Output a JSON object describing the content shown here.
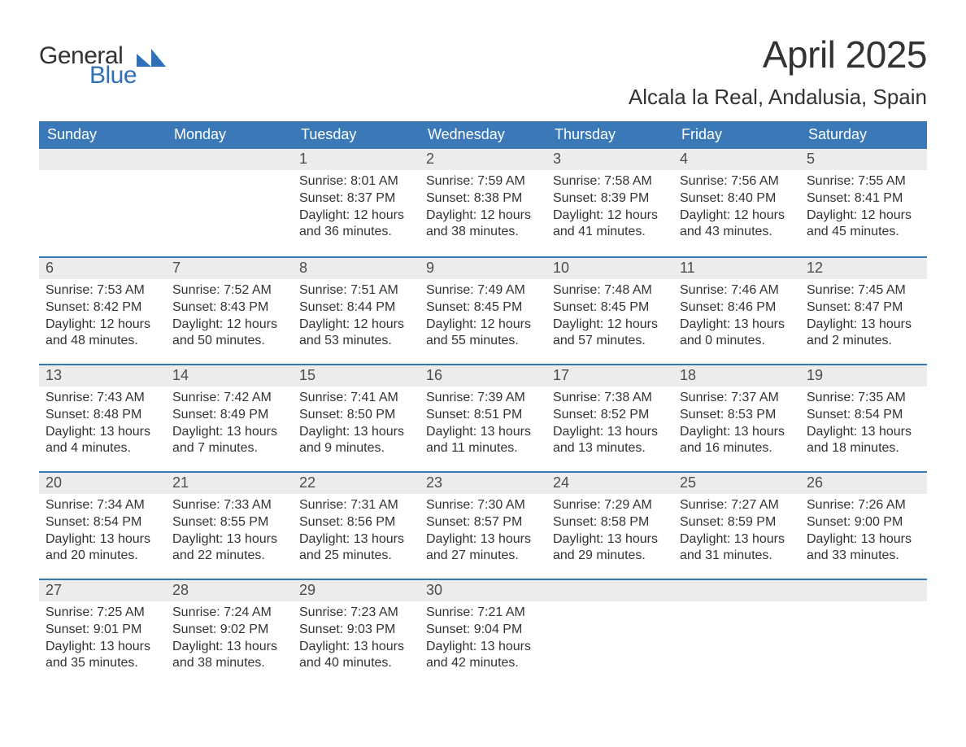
{
  "logo": {
    "word1": "General",
    "word2": "Blue",
    "mark_color": "#2f70b6",
    "text_color_dark": "#333333"
  },
  "title": "April 2025",
  "location": "Alcala la Real, Andalusia, Spain",
  "colors": {
    "header_bg": "#3b78b8",
    "header_text": "#ffffff",
    "daynum_bg": "#ececec",
    "daynum_text": "#4d4d4d",
    "body_text": "#333333",
    "row_border": "#3b78b8",
    "page_bg": "#ffffff"
  },
  "fonts": {
    "title_size_pt": 34,
    "location_size_pt": 20,
    "dow_size_pt": 14,
    "daynum_size_pt": 14,
    "body_size_pt": 12
  },
  "days_of_week": [
    "Sunday",
    "Monday",
    "Tuesday",
    "Wednesday",
    "Thursday",
    "Friday",
    "Saturday"
  ],
  "weeks": [
    [
      {
        "blank": true
      },
      {
        "blank": true
      },
      {
        "num": "1",
        "sunrise": "Sunrise: 8:01 AM",
        "sunset": "Sunset: 8:37 PM",
        "daylight1": "Daylight: 12 hours",
        "daylight2": "and 36 minutes."
      },
      {
        "num": "2",
        "sunrise": "Sunrise: 7:59 AM",
        "sunset": "Sunset: 8:38 PM",
        "daylight1": "Daylight: 12 hours",
        "daylight2": "and 38 minutes."
      },
      {
        "num": "3",
        "sunrise": "Sunrise: 7:58 AM",
        "sunset": "Sunset: 8:39 PM",
        "daylight1": "Daylight: 12 hours",
        "daylight2": "and 41 minutes."
      },
      {
        "num": "4",
        "sunrise": "Sunrise: 7:56 AM",
        "sunset": "Sunset: 8:40 PM",
        "daylight1": "Daylight: 12 hours",
        "daylight2": "and 43 minutes."
      },
      {
        "num": "5",
        "sunrise": "Sunrise: 7:55 AM",
        "sunset": "Sunset: 8:41 PM",
        "daylight1": "Daylight: 12 hours",
        "daylight2": "and 45 minutes."
      }
    ],
    [
      {
        "num": "6",
        "sunrise": "Sunrise: 7:53 AM",
        "sunset": "Sunset: 8:42 PM",
        "daylight1": "Daylight: 12 hours",
        "daylight2": "and 48 minutes."
      },
      {
        "num": "7",
        "sunrise": "Sunrise: 7:52 AM",
        "sunset": "Sunset: 8:43 PM",
        "daylight1": "Daylight: 12 hours",
        "daylight2": "and 50 minutes."
      },
      {
        "num": "8",
        "sunrise": "Sunrise: 7:51 AM",
        "sunset": "Sunset: 8:44 PM",
        "daylight1": "Daylight: 12 hours",
        "daylight2": "and 53 minutes."
      },
      {
        "num": "9",
        "sunrise": "Sunrise: 7:49 AM",
        "sunset": "Sunset: 8:45 PM",
        "daylight1": "Daylight: 12 hours",
        "daylight2": "and 55 minutes."
      },
      {
        "num": "10",
        "sunrise": "Sunrise: 7:48 AM",
        "sunset": "Sunset: 8:45 PM",
        "daylight1": "Daylight: 12 hours",
        "daylight2": "and 57 minutes."
      },
      {
        "num": "11",
        "sunrise": "Sunrise: 7:46 AM",
        "sunset": "Sunset: 8:46 PM",
        "daylight1": "Daylight: 13 hours",
        "daylight2": "and 0 minutes."
      },
      {
        "num": "12",
        "sunrise": "Sunrise: 7:45 AM",
        "sunset": "Sunset: 8:47 PM",
        "daylight1": "Daylight: 13 hours",
        "daylight2": "and 2 minutes."
      }
    ],
    [
      {
        "num": "13",
        "sunrise": "Sunrise: 7:43 AM",
        "sunset": "Sunset: 8:48 PM",
        "daylight1": "Daylight: 13 hours",
        "daylight2": "and 4 minutes."
      },
      {
        "num": "14",
        "sunrise": "Sunrise: 7:42 AM",
        "sunset": "Sunset: 8:49 PM",
        "daylight1": "Daylight: 13 hours",
        "daylight2": "and 7 minutes."
      },
      {
        "num": "15",
        "sunrise": "Sunrise: 7:41 AM",
        "sunset": "Sunset: 8:50 PM",
        "daylight1": "Daylight: 13 hours",
        "daylight2": "and 9 minutes."
      },
      {
        "num": "16",
        "sunrise": "Sunrise: 7:39 AM",
        "sunset": "Sunset: 8:51 PM",
        "daylight1": "Daylight: 13 hours",
        "daylight2": "and 11 minutes."
      },
      {
        "num": "17",
        "sunrise": "Sunrise: 7:38 AM",
        "sunset": "Sunset: 8:52 PM",
        "daylight1": "Daylight: 13 hours",
        "daylight2": "and 13 minutes."
      },
      {
        "num": "18",
        "sunrise": "Sunrise: 7:37 AM",
        "sunset": "Sunset: 8:53 PM",
        "daylight1": "Daylight: 13 hours",
        "daylight2": "and 16 minutes."
      },
      {
        "num": "19",
        "sunrise": "Sunrise: 7:35 AM",
        "sunset": "Sunset: 8:54 PM",
        "daylight1": "Daylight: 13 hours",
        "daylight2": "and 18 minutes."
      }
    ],
    [
      {
        "num": "20",
        "sunrise": "Sunrise: 7:34 AM",
        "sunset": "Sunset: 8:54 PM",
        "daylight1": "Daylight: 13 hours",
        "daylight2": "and 20 minutes."
      },
      {
        "num": "21",
        "sunrise": "Sunrise: 7:33 AM",
        "sunset": "Sunset: 8:55 PM",
        "daylight1": "Daylight: 13 hours",
        "daylight2": "and 22 minutes."
      },
      {
        "num": "22",
        "sunrise": "Sunrise: 7:31 AM",
        "sunset": "Sunset: 8:56 PM",
        "daylight1": "Daylight: 13 hours",
        "daylight2": "and 25 minutes."
      },
      {
        "num": "23",
        "sunrise": "Sunrise: 7:30 AM",
        "sunset": "Sunset: 8:57 PM",
        "daylight1": "Daylight: 13 hours",
        "daylight2": "and 27 minutes."
      },
      {
        "num": "24",
        "sunrise": "Sunrise: 7:29 AM",
        "sunset": "Sunset: 8:58 PM",
        "daylight1": "Daylight: 13 hours",
        "daylight2": "and 29 minutes."
      },
      {
        "num": "25",
        "sunrise": "Sunrise: 7:27 AM",
        "sunset": "Sunset: 8:59 PM",
        "daylight1": "Daylight: 13 hours",
        "daylight2": "and 31 minutes."
      },
      {
        "num": "26",
        "sunrise": "Sunrise: 7:26 AM",
        "sunset": "Sunset: 9:00 PM",
        "daylight1": "Daylight: 13 hours",
        "daylight2": "and 33 minutes."
      }
    ],
    [
      {
        "num": "27",
        "sunrise": "Sunrise: 7:25 AM",
        "sunset": "Sunset: 9:01 PM",
        "daylight1": "Daylight: 13 hours",
        "daylight2": "and 35 minutes."
      },
      {
        "num": "28",
        "sunrise": "Sunrise: 7:24 AM",
        "sunset": "Sunset: 9:02 PM",
        "daylight1": "Daylight: 13 hours",
        "daylight2": "and 38 minutes."
      },
      {
        "num": "29",
        "sunrise": "Sunrise: 7:23 AM",
        "sunset": "Sunset: 9:03 PM",
        "daylight1": "Daylight: 13 hours",
        "daylight2": "and 40 minutes."
      },
      {
        "num": "30",
        "sunrise": "Sunrise: 7:21 AM",
        "sunset": "Sunset: 9:04 PM",
        "daylight1": "Daylight: 13 hours",
        "daylight2": "and 42 minutes."
      },
      {
        "blank": true
      },
      {
        "blank": true
      },
      {
        "blank": true
      }
    ]
  ]
}
